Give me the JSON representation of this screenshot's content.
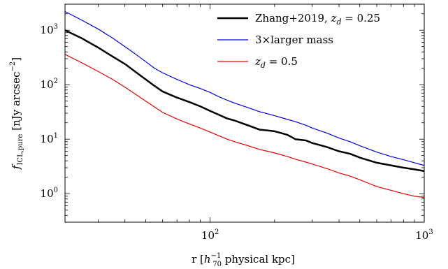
{
  "chart_data": {
    "type": "line",
    "xlabel": "r [h70^-1 physical kpc]",
    "ylabel": "f_ICL,pure [nJy arcsec^-2]",
    "xscale": "log",
    "yscale": "log",
    "xlim": [
      21,
      1000
    ],
    "ylim": [
      0.3,
      3000
    ],
    "x_ticks": [
      {
        "value": 100,
        "label": "10",
        "exp": "2"
      },
      {
        "value": 1000,
        "label": "10",
        "exp": "3"
      }
    ],
    "y_ticks": [
      {
        "value": 1,
        "label": "10",
        "exp": "0"
      },
      {
        "value": 10,
        "label": "10",
        "exp": "1"
      },
      {
        "value": 100,
        "label": "10",
        "exp": "2"
      },
      {
        "value": 1000,
        "label": "10",
        "exp": "3"
      }
    ],
    "grid": false,
    "legend_position": "top-right",
    "series": [
      {
        "name": "Zhang+2019, z_d = 0.25",
        "color": "#000000",
        "width": 2.5,
        "x": [
          21,
          25,
          30,
          35,
          40,
          45,
          50,
          55,
          60,
          70,
          80,
          90,
          100,
          110,
          120,
          130,
          150,
          170,
          200,
          230,
          250,
          280,
          300,
          350,
          400,
          450,
          500,
          550,
          600,
          700,
          800,
          900,
          1000
        ],
        "y": [
          1000,
          720,
          480,
          330,
          240,
          170,
          125,
          95,
          75,
          58,
          48,
          40,
          33,
          28,
          24,
          22,
          18,
          15,
          14,
          12,
          10,
          9.5,
          8.5,
          7.2,
          6.0,
          5.4,
          4.6,
          4.1,
          3.7,
          3.3,
          3.0,
          2.8,
          2.6
        ]
      },
      {
        "name": "3×larger mass",
        "color": "#0000ee",
        "width": 1.2,
        "x": [
          21,
          25,
          30,
          35,
          40,
          45,
          50,
          55,
          60,
          70,
          80,
          90,
          100,
          110,
          120,
          130,
          150,
          170,
          200,
          230,
          250,
          280,
          300,
          350,
          400,
          450,
          500,
          550,
          600,
          700,
          800,
          900,
          1000
        ],
        "y": [
          2200,
          1550,
          1050,
          720,
          500,
          360,
          265,
          200,
          165,
          125,
          100,
          85,
          72,
          60,
          52,
          46,
          38,
          32,
          27,
          23,
          21,
          18,
          16,
          13,
          10.5,
          9.0,
          7.6,
          6.6,
          5.8,
          4.8,
          4.2,
          3.7,
          3.3
        ]
      },
      {
        "name": "z_d = 0.5",
        "color": "#ee0000",
        "width": 1.2,
        "x": [
          21,
          25,
          30,
          35,
          40,
          45,
          50,
          55,
          60,
          70,
          80,
          90,
          100,
          110,
          120,
          130,
          150,
          170,
          200,
          230,
          250,
          280,
          300,
          350,
          400,
          450,
          500,
          550,
          600,
          700,
          800,
          900,
          1000
        ],
        "y": [
          360,
          255,
          175,
          125,
          90,
          66,
          50,
          39,
          31,
          23.5,
          19,
          16,
          13.5,
          11.5,
          10,
          9.0,
          7.6,
          6.5,
          5.6,
          4.8,
          4.3,
          3.8,
          3.5,
          2.9,
          2.4,
          2.1,
          1.8,
          1.55,
          1.35,
          1.15,
          1.0,
          0.9,
          0.85
        ]
      }
    ]
  },
  "legend": {
    "items": [
      {
        "prefix": "Zhang+2019, ",
        "var": "z",
        "sub": "d",
        "suffix": " = 0.25"
      },
      {
        "prefix": "3×larger mass",
        "var": "",
        "sub": "",
        "suffix": ""
      },
      {
        "prefix": "",
        "var": "z",
        "sub": "d",
        "suffix": " = 0.5"
      }
    ]
  },
  "axis_labels": {
    "x": {
      "pre": "r [",
      "h": "h",
      "sub": "70",
      "sup": "−1",
      "post": " physical kpc]"
    },
    "y": {
      "f": "f",
      "sub": "ICL,pure",
      "post": " [nJy arcsec",
      "sup": "−2",
      "end": "]"
    }
  }
}
